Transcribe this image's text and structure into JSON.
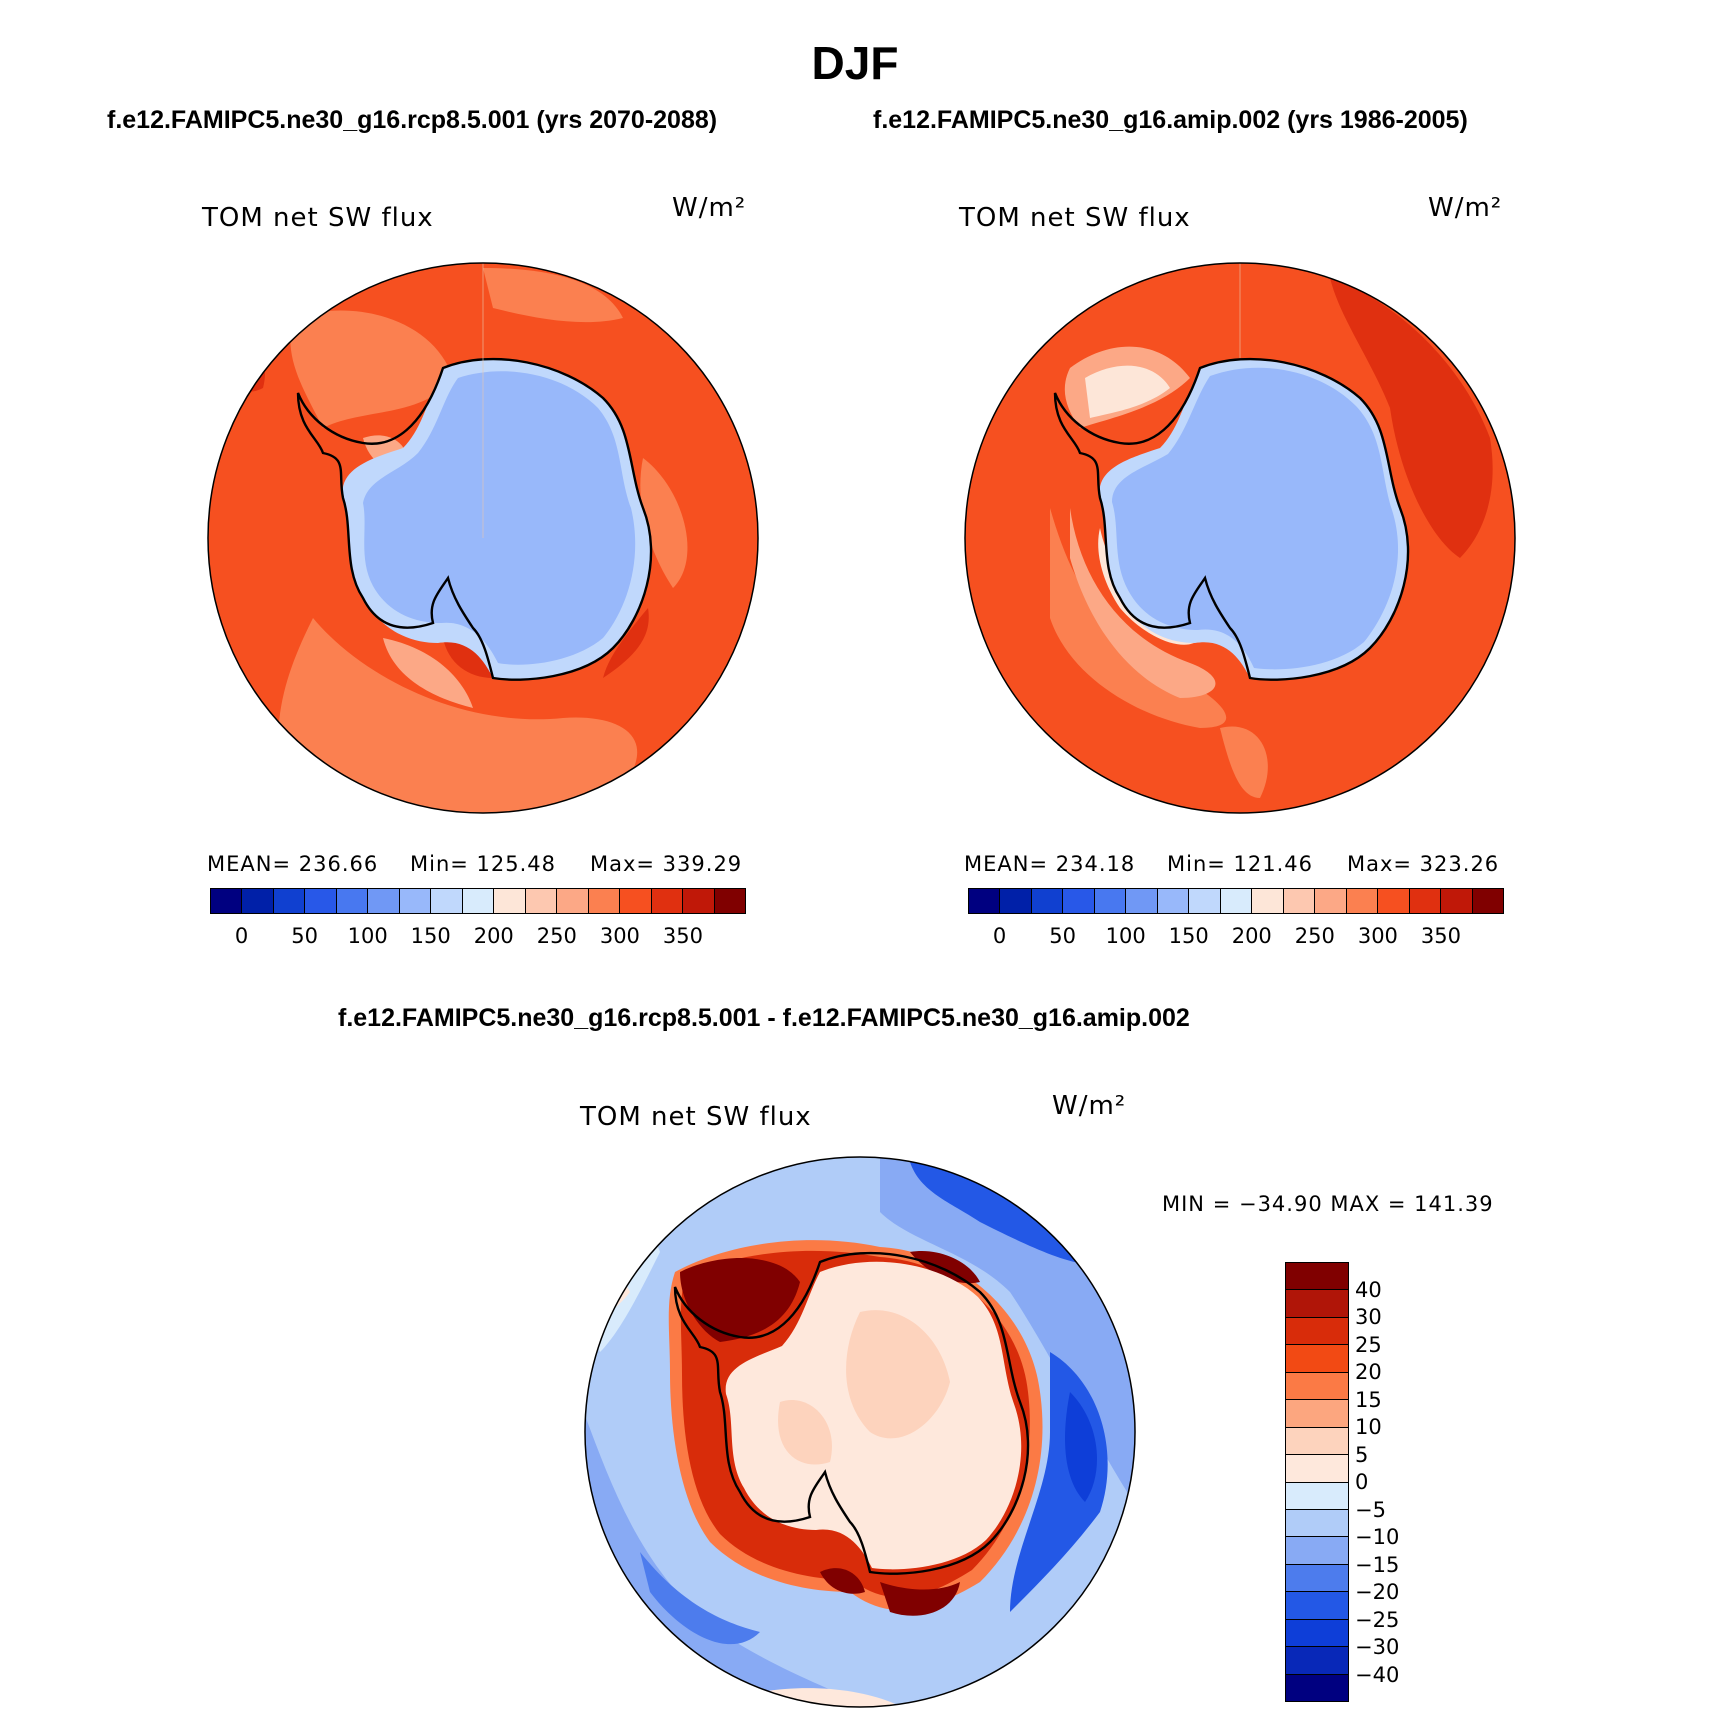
{
  "title": "DJF",
  "panels": {
    "left": {
      "subtitle": "f.e12.FAMIPC5.ne30_g16.rcp8.5.001 (yrs 2070-2088)",
      "label": "TOM net SW flux",
      "units": "W/m²",
      "mean": "MEAN= 236.66",
      "min": "Min= 125.48",
      "max": "Max= 339.29"
    },
    "right": {
      "subtitle": "f.e12.FAMIPC5.ne30_g16.amip.002 (yrs 1986-2005)",
      "label": "TOM net SW flux",
      "units": "W/m²",
      "mean": "MEAN= 234.18",
      "min": "Min= 121.46",
      "max": "Max= 323.26"
    },
    "diff": {
      "subtitle": "f.e12.FAMIPC5.ne30_g16.rcp8.5.001 - f.e12.FAMIPC5.ne30_g16.amip.002",
      "label": "TOM net SW flux",
      "units": "W/m²",
      "minmax": "MIN = −34.90 MAX = 141.39"
    }
  },
  "abs_colorbar": {
    "colors": [
      "#000080",
      "#0020a8",
      "#1040d0",
      "#2858e8",
      "#4878f0",
      "#7098f5",
      "#98b8fa",
      "#c0d8fc",
      "#d8ebfc",
      "#fde6d8",
      "#fdc8b0",
      "#fca886",
      "#fb8050",
      "#f65020",
      "#e03010",
      "#c01808",
      "#800000"
    ],
    "tick_labels": [
      "0",
      "50",
      "100",
      "150",
      "200",
      "250",
      "300",
      "350"
    ]
  },
  "diff_colorbar": {
    "colors_top_to_bottom": [
      "#800000",
      "#b01508",
      "#d82c0a",
      "#f24a14",
      "#fb7a45",
      "#fca67f",
      "#fdd3bd",
      "#fee8dc",
      "#d8ebfc",
      "#b0ccf8",
      "#88aaf4",
      "#4d7ced",
      "#2358e6",
      "#0e3ed8",
      "#0828b8",
      "#000080"
    ],
    "tick_labels": [
      "40",
      "30",
      "25",
      "20",
      "15",
      "10",
      "5",
      "0",
      "−5",
      "−10",
      "−15",
      "−20",
      "−25",
      "−30",
      "−40"
    ]
  }
}
